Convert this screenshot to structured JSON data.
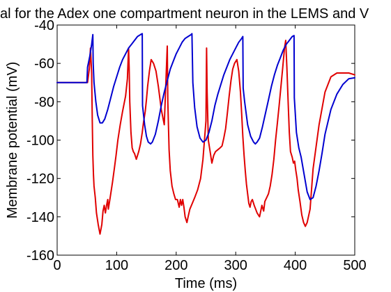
{
  "chart_data": {
    "type": "line",
    "title": "al for the Adex one compartment neuron in the LEMS and V",
    "xlabel": "Time (ms)",
    "ylabel": "Membrane potential (mV)",
    "xlim": [
      0,
      500
    ],
    "ylim": [
      -160,
      -40
    ],
    "xticks": [
      "0",
      "100",
      "200",
      "300",
      "400",
      "500"
    ],
    "yticks": [
      "-40",
      "-60",
      "-80",
      "-100",
      "-120",
      "-140",
      "-160"
    ],
    "grid": false,
    "legend": "none",
    "series": [
      {
        "color": "#e00000",
        "x": [
          0,
          51,
          54,
          56,
          58,
          59,
          60,
          61,
          62,
          64,
          66,
          69,
          72,
          75,
          77,
          79,
          81,
          83,
          85,
          86,
          88,
          90,
          93,
          96,
          99,
          102,
          106,
          110,
          115,
          118,
          120,
          121,
          122,
          124,
          126,
          128,
          130,
          133,
          137,
          140,
          143,
          145,
          148,
          150,
          152,
          155,
          158,
          162,
          166,
          170,
          175,
          180,
          183,
          185,
          186,
          188,
          190,
          193,
          196,
          199,
          202,
          205,
          207,
          209,
          211,
          213,
          215,
          218,
          220,
          223,
          227,
          231,
          236,
          241,
          245,
          248,
          250,
          251,
          252,
          254,
          257,
          260,
          263,
          266,
          270,
          274,
          277,
          280,
          283,
          286,
          289,
          292,
          295,
          298,
          302,
          305,
          308,
          310,
          312,
          314,
          316,
          318,
          320,
          322,
          324,
          326,
          328,
          331,
          336,
          340,
          344,
          347,
          349,
          352,
          355,
          358,
          361,
          364,
          367,
          370,
          373,
          376,
          379,
          382,
          384,
          386,
          388,
          390,
          392,
          395,
          397,
          399,
          401,
          403,
          405,
          408,
          411,
          414,
          417,
          420,
          425,
          430,
          440,
          450,
          460,
          470,
          480,
          490,
          500
        ],
        "y": [
          -70,
          -70,
          -63,
          -52,
          -65,
          -90,
          -108,
          -118,
          -124,
          -130,
          -138,
          -144,
          -149,
          -144,
          -137,
          -134,
          -138,
          -134,
          -131,
          -136,
          -132,
          -128,
          -122,
          -115,
          -108,
          -100,
          -92,
          -85,
          -77,
          -68,
          -52,
          -62,
          -80,
          -96,
          -104,
          -106,
          -107,
          -110,
          -106,
          -102,
          -96,
          -91,
          -85,
          -79,
          -72,
          -64,
          -58,
          -60,
          -64,
          -72,
          -84,
          -92,
          -67,
          -51,
          -80,
          -105,
          -116,
          -124,
          -128,
          -131,
          -131,
          -135,
          -131,
          -134,
          -131,
          -135,
          -140,
          -143,
          -140,
          -136,
          -133,
          -130,
          -126,
          -120,
          -110,
          -98,
          -90,
          -52,
          -75,
          -100,
          -106,
          -112,
          -108,
          -106,
          -105,
          -104,
          -103,
          -99,
          -94,
          -86,
          -77,
          -69,
          -63,
          -60,
          -58,
          -64,
          -75,
          -86,
          -98,
          -108,
          -116,
          -123,
          -128,
          -133,
          -135,
          -132,
          -131,
          -134,
          -138,
          -140,
          -134,
          -137,
          -132,
          -130,
          -128,
          -124,
          -118,
          -110,
          -100,
          -91,
          -82,
          -72,
          -62,
          -52,
          -48,
          -62,
          -80,
          -96,
          -106,
          -109,
          -112,
          -111,
          -116,
          -120,
          -126,
          -132,
          -139,
          -143,
          -145,
          -143,
          -136,
          -115,
          -92,
          -75,
          -67,
          -65,
          -65,
          -65,
          -66
        ]
      },
      {
        "color": "#0000d0",
        "x": [
          0,
          50,
          51,
          55,
          58,
          60,
          60.5,
          62,
          65,
          68,
          72,
          76,
          80,
          85,
          90,
          95,
          100,
          105,
          110,
          115,
          120,
          125,
          130,
          135,
          140,
          143,
          143.5,
          147,
          150,
          153,
          157,
          160,
          165,
          170,
          175,
          180,
          185,
          190,
          195,
          200,
          205,
          210,
          215,
          220,
          225,
          226.5,
          228,
          231,
          235,
          240,
          245,
          250,
          255,
          260,
          265,
          270,
          280,
          290,
          300,
          305,
          310,
          312,
          312.5,
          315,
          320,
          325,
          330,
          333,
          336,
          340,
          345,
          350,
          355,
          360,
          365,
          370,
          375,
          380,
          385,
          390,
          395,
          398,
          398.5,
          402,
          406,
          410,
          415,
          420,
          425,
          430,
          435,
          440,
          445,
          450,
          460,
          470,
          480,
          490,
          500
        ],
        "y": [
          -70,
          -70,
          -62,
          -56,
          -50,
          -45,
          -60,
          -70,
          -80,
          -87,
          -91,
          -91,
          -89,
          -84,
          -78,
          -72,
          -67,
          -62,
          -58,
          -55,
          -52,
          -50,
          -48,
          -46,
          -45,
          -44.5,
          -82,
          -92,
          -98,
          -101,
          -102,
          -101,
          -97,
          -90,
          -82,
          -75,
          -69,
          -63,
          -59,
          -55,
          -52,
          -49,
          -47,
          -46,
          -45,
          -44.5,
          -70,
          -83,
          -93,
          -99,
          -101,
          -100,
          -96,
          -90,
          -82,
          -76,
          -66,
          -58,
          -52,
          -49,
          -47,
          -46,
          -73,
          -80,
          -92,
          -98,
          -101,
          -102,
          -101,
          -99,
          -93,
          -86,
          -79,
          -72,
          -66,
          -61,
          -57,
          -53,
          -50,
          -48,
          -46,
          -45.5,
          -78,
          -96,
          -104,
          -109,
          -118,
          -127,
          -131,
          -130,
          -124,
          -116,
          -107,
          -97,
          -84,
          -76,
          -71,
          -68,
          -67.5
        ]
      }
    ]
  }
}
